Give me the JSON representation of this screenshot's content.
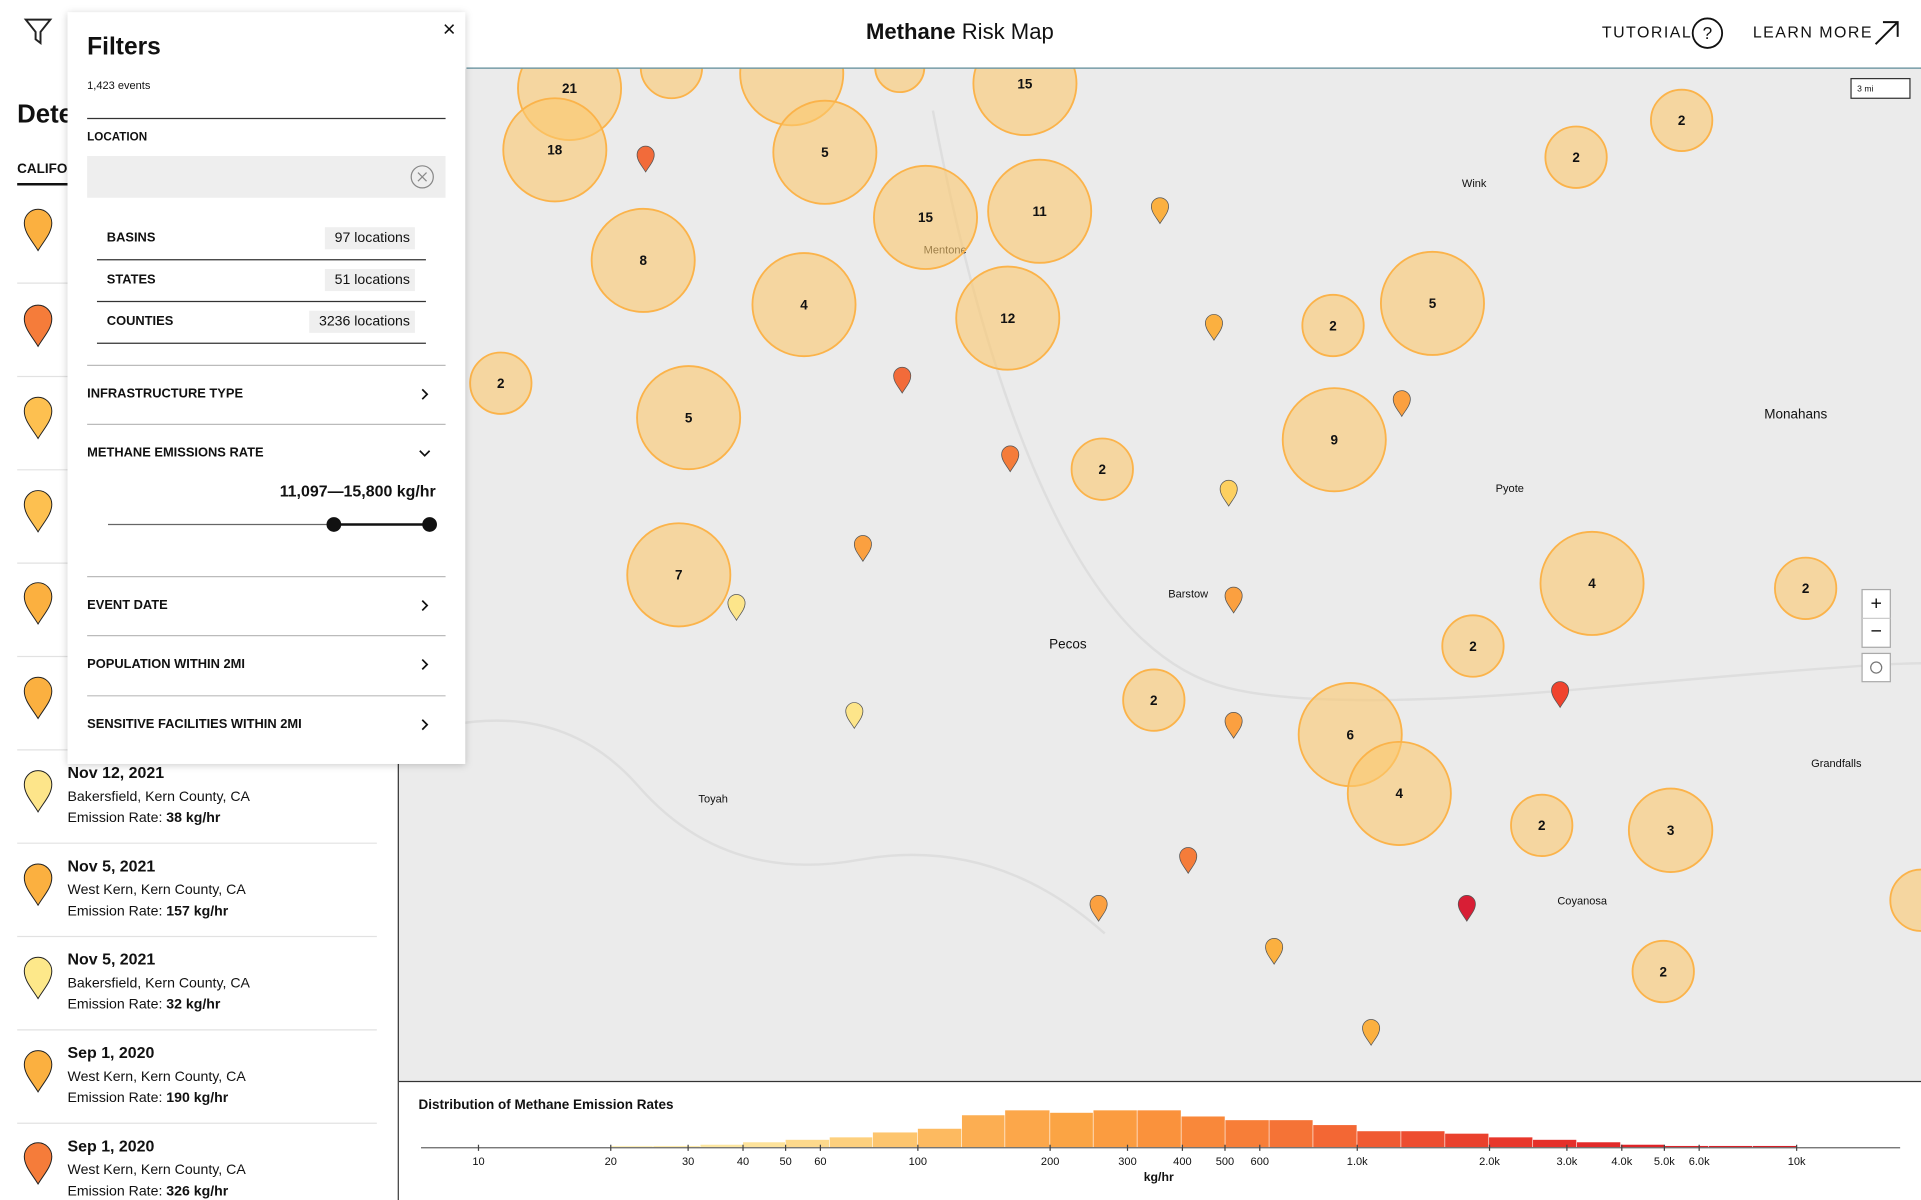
{
  "header": {
    "title_bold": "Methane",
    "title_rest": "Risk Map",
    "tutorial": "TUTORIAL",
    "tutorial_icon": "?",
    "learn_more": "LEARN MORE"
  },
  "sidebar": {
    "heading": "Dete",
    "tab": "CALIFO",
    "events": [
      {
        "date": "Nov 12, 2021",
        "location": "Bakersfield, Kern County, CA",
        "rate_label": "Emission Rate:",
        "rate": "38 kg/hr"
      },
      {
        "date": "Nov 5, 2021",
        "location": "West Kern, Kern County, CA",
        "rate_label": "Emission Rate:",
        "rate": "157 kg/hr"
      },
      {
        "date": "Nov 5, 2021",
        "location": "Bakersfield, Kern County, CA",
        "rate_label": "Emission Rate:",
        "rate": "32 kg/hr"
      },
      {
        "date": "Sep 1, 2020",
        "location": "West Kern, Kern County, CA",
        "rate_label": "Emission Rate:",
        "rate": "190 kg/hr"
      },
      {
        "date": "Sep 1, 2020",
        "location": "West Kern, Kern County, CA",
        "rate_label": "Emission Rate:",
        "rate": "326 kg/hr"
      }
    ]
  },
  "filters": {
    "title": "Filters",
    "close": "×",
    "count": "1,423 events",
    "location_label": "LOCATION",
    "locations": [
      {
        "name": "BASINS",
        "count": "97 locations"
      },
      {
        "name": "STATES",
        "count": "51 locations"
      },
      {
        "name": "COUNTIES",
        "count": "3236 locations"
      }
    ],
    "sections": [
      "INFRASTRUCTURE TYPE",
      "METHANE EMISSIONS RATE",
      "EVENT DATE",
      "POPULATION WITHIN 2MI",
      "SENSITIVE FACILITIES WITHIN 2MI"
    ],
    "emission_range": "11,097—15,800 kg/hr"
  },
  "map": {
    "clusters": [
      21,
      18,
      5,
      15,
      15,
      11,
      8,
      4,
      12,
      2,
      5,
      2,
      2,
      2,
      5,
      9,
      2,
      7,
      4,
      2,
      2,
      2,
      6,
      4,
      2,
      3,
      2
    ],
    "places": [
      "Wink",
      "Mentone",
      "Monahans",
      "Pyote",
      "Barstow",
      "Pecos",
      "Toyah",
      "Grandfalls",
      "Coyanosa"
    ],
    "scale": "3 mi",
    "zoom_in": "+",
    "zoom_out": "−"
  },
  "chart_data": {
    "type": "histogram",
    "title": "Distribution of Methane Emission Rates",
    "x_label": "kg/hr",
    "log_x": true,
    "bins": [
      20,
      25,
      32,
      40,
      50,
      63,
      79,
      100,
      126,
      158,
      200,
      251,
      316,
      398,
      501,
      631,
      794,
      1000,
      1259,
      1585,
      1995,
      2512,
      3162,
      3981,
      5012,
      6310,
      7943,
      10000
    ],
    "counts": [
      1,
      1,
      2,
      4,
      6,
      8,
      12,
      15,
      26,
      30,
      28,
      30,
      30,
      25,
      22,
      22,
      18,
      13,
      13,
      11,
      8,
      6,
      4,
      2,
      1,
      1,
      1
    ],
    "colors": [
      "#fdf0b8",
      "#fdebaa",
      "#fde7a0",
      "#fde29a",
      "#fdd98c",
      "#fdd07e",
      "#fdc56e",
      "#fdba60",
      "#fcae52",
      "#fca74a",
      "#fba444",
      "#fb9c40",
      "#fa923c",
      "#f9883a",
      "#f77e38",
      "#f57336",
      "#f36734",
      "#f05a32",
      "#ed4d30",
      "#ea412d",
      "#e8372b",
      "#e5302a",
      "#e22a29",
      "#de2428",
      "#da2228",
      "#d62027",
      "#d21e26"
    ],
    "xlim": [
      7.4,
      17200
    ],
    "xticks": [
      10,
      20,
      30,
      40,
      50,
      60,
      100,
      200,
      300,
      400,
      500,
      600,
      {
        "value": 1000,
        "label": "1.0k"
      },
      {
        "value": 2000,
        "label": "2.0k"
      },
      {
        "value": 3000,
        "label": "3.0k"
      },
      {
        "value": 4000,
        "label": "4.0k"
      },
      {
        "value": 5000,
        "label": "5.0k"
      },
      {
        "value": 6000,
        "label": "6.0k"
      },
      {
        "value": 10000,
        "label": "10k"
      }
    ]
  }
}
